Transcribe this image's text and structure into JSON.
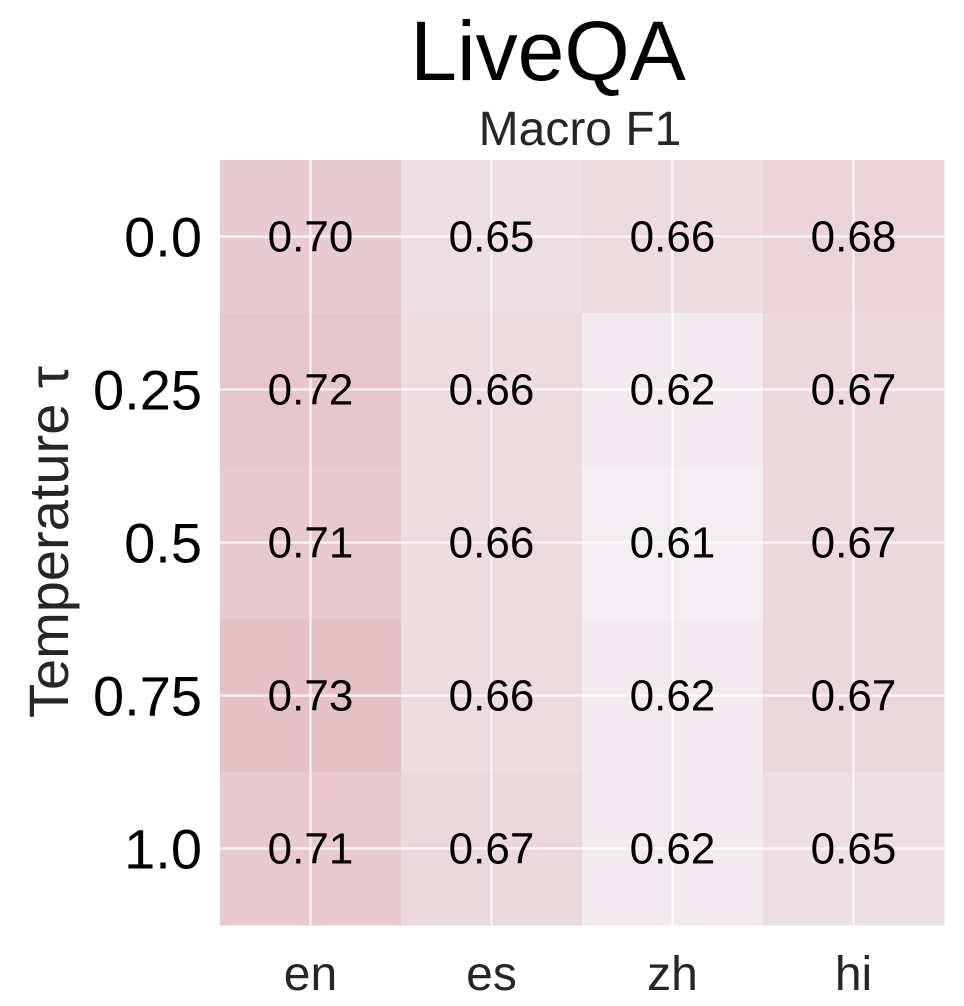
{
  "chart_data": {
    "type": "heatmap",
    "title": "LiveQA",
    "subtitle": "Macro F1",
    "xlabel": "",
    "ylabel": "Temperature τ",
    "x_categories": [
      "en",
      "es",
      "zh",
      "hi"
    ],
    "y_categories": [
      "0.0",
      "0.25",
      "0.5",
      "0.75",
      "1.0"
    ],
    "values": [
      [
        0.7,
        0.65,
        0.66,
        0.68
      ],
      [
        0.72,
        0.66,
        0.62,
        0.67
      ],
      [
        0.71,
        0.66,
        0.61,
        0.67
      ],
      [
        0.73,
        0.66,
        0.62,
        0.67
      ],
      [
        0.71,
        0.67,
        0.62,
        0.65
      ]
    ],
    "value_labels": [
      [
        "0.70",
        "0.65",
        "0.66",
        "0.68"
      ],
      [
        "0.72",
        "0.66",
        "0.62",
        "0.67"
      ],
      [
        "0.71",
        "0.66",
        "0.61",
        "0.67"
      ],
      [
        "0.73",
        "0.66",
        "0.62",
        "0.67"
      ],
      [
        "0.71",
        "0.67",
        "0.62",
        "0.65"
      ]
    ],
    "color_range": [
      0.61,
      0.73
    ],
    "colors": {
      "low": "#f2eef2",
      "high": "#e6c1c8"
    },
    "grid": true
  }
}
